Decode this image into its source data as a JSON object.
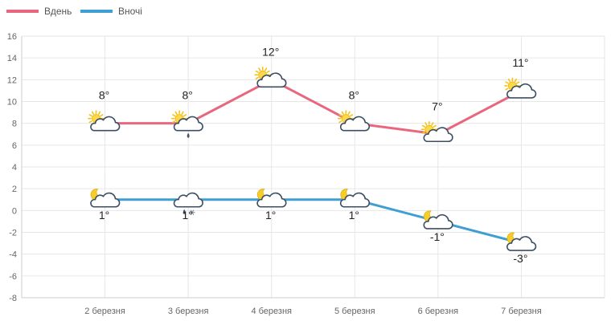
{
  "chart_data": {
    "type": "line",
    "categories": [
      "2 березня",
      "3 березня",
      "4 березня",
      "5 березня",
      "6 березня",
      "7 березня"
    ],
    "ylim": [
      -8,
      16
    ],
    "y_ticks": [
      -8,
      -6,
      -4,
      -2,
      0,
      2,
      4,
      6,
      8,
      10,
      12,
      14,
      16
    ],
    "grid": true,
    "legend": "top-left",
    "series": [
      {
        "name": "Вдень",
        "color": "#e8677f",
        "values": [
          8,
          8,
          12,
          8,
          7,
          11
        ],
        "labels": [
          "8°",
          "8°",
          "12°",
          "8°",
          "7°",
          "11°"
        ],
        "icons": [
          "sun-cloud-icon",
          "sun-cloud-rain-icon",
          "sun-cloud-icon",
          "sun-cloud-icon",
          "sun-cloud-icon",
          "sun-cloud-icon"
        ]
      },
      {
        "name": "Вночі",
        "color": "#3f9fd3",
        "values": [
          1,
          1,
          1,
          1,
          -1,
          -3
        ],
        "labels": [
          "1°",
          "1°",
          "1°",
          "1°",
          "-1°",
          "-3°"
        ],
        "icons": [
          "moon-cloud-icon",
          "cloud-rain-snow-icon",
          "moon-cloud-icon",
          "moon-cloud-icon",
          "moon-cloud-icon",
          "moon-cloud-icon"
        ]
      }
    ]
  }
}
